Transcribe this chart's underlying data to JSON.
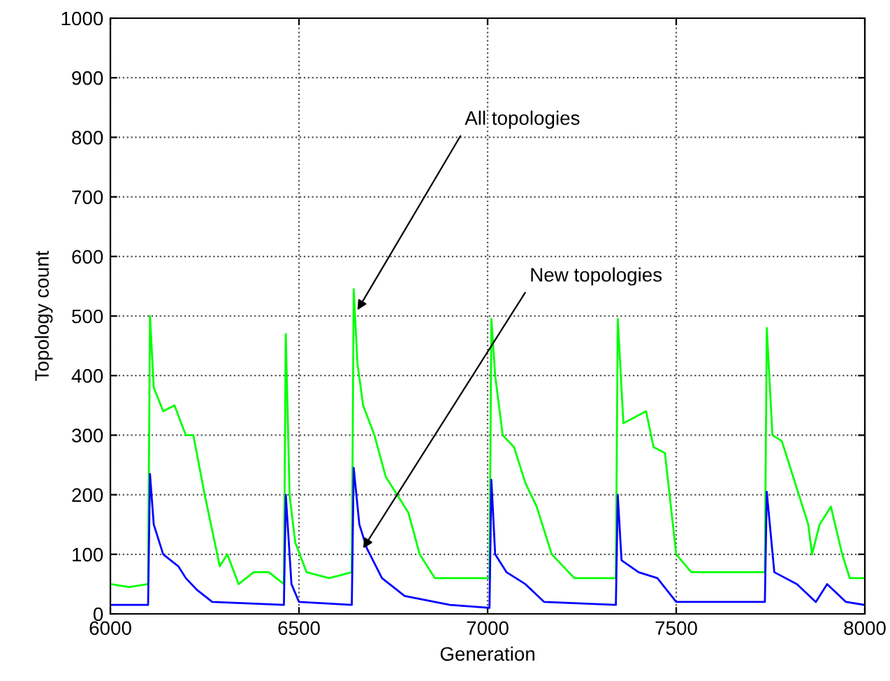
{
  "chart_data": {
    "type": "line",
    "xlabel": "Generation",
    "ylabel": "Topology count",
    "xlim": [
      6000,
      8000
    ],
    "ylim": [
      0,
      1000
    ],
    "xticks": [
      6000,
      6500,
      7000,
      7500,
      8000
    ],
    "yticks": [
      0,
      100,
      200,
      300,
      400,
      500,
      600,
      700,
      800,
      900,
      1000
    ],
    "grid": true,
    "line_style": "solid",
    "marker": "none",
    "annotations": [
      {
        "text": "All topologies",
        "x": 6655,
        "y": 510
      },
      {
        "text": "New topologies",
        "x": 6670,
        "y": 110
      }
    ],
    "series": [
      {
        "color": "#00ff00",
        "x": [
          6000,
          6050,
          6100,
          6105,
          6115,
          6140,
          6170,
          6200,
          6220,
          6250,
          6290,
          6310,
          6340,
          6380,
          6420,
          6460,
          6465,
          6475,
          6490,
          6520,
          6580,
          6640,
          6645,
          6655,
          6670,
          6700,
          6730,
          6760,
          6790,
          6820,
          6860,
          6950,
          7005,
          7010,
          7020,
          7040,
          7070,
          7100,
          7130,
          7170,
          7200,
          7230,
          7340,
          7345,
          7360,
          7390,
          7420,
          7440,
          7470,
          7500,
          7540,
          7735,
          7740,
          7755,
          7780,
          7800,
          7850,
          7860,
          7880,
          7910,
          7940,
          7960,
          8000
        ],
        "values": [
          50,
          45,
          50,
          500,
          380,
          340,
          350,
          300,
          300,
          200,
          80,
          100,
          50,
          70,
          70,
          50,
          470,
          200,
          120,
          70,
          60,
          70,
          545,
          420,
          350,
          300,
          230,
          200,
          170,
          100,
          60,
          60,
          60,
          495,
          400,
          300,
          280,
          220,
          180,
          100,
          80,
          60,
          60,
          495,
          320,
          330,
          340,
          280,
          270,
          100,
          70,
          70,
          480,
          300,
          290,
          250,
          150,
          100,
          150,
          180,
          100,
          60,
          60
        ]
      },
      {
        "color": "#0000ff",
        "x": [
          6000,
          6100,
          6105,
          6115,
          6140,
          6180,
          6200,
          6230,
          6270,
          6460,
          6465,
          6480,
          6500,
          6640,
          6645,
          6660,
          6680,
          6720,
          6780,
          6900,
          7005,
          7010,
          7020,
          7050,
          7100,
          7150,
          7340,
          7345,
          7355,
          7400,
          7450,
          7500,
          7735,
          7740,
          7760,
          7820,
          7870,
          7900,
          7950,
          8000
        ],
        "values": [
          15,
          15,
          235,
          150,
          100,
          80,
          60,
          40,
          20,
          15,
          200,
          50,
          20,
          15,
          245,
          150,
          110,
          60,
          30,
          15,
          10,
          225,
          100,
          70,
          50,
          20,
          15,
          200,
          90,
          70,
          60,
          20,
          20,
          205,
          70,
          50,
          20,
          50,
          20,
          15
        ]
      }
    ]
  }
}
